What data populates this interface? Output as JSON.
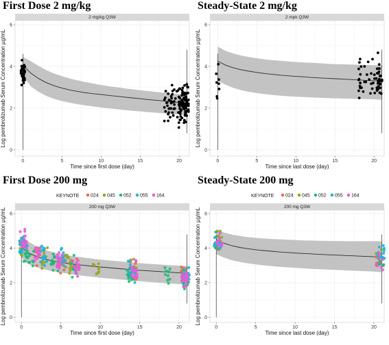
{
  "colors": {
    "keynote_024": "#f0675c",
    "keynote_045": "#9aa31c",
    "keynote_052": "#1fb97a",
    "keynote_055": "#1db5de",
    "keynote_164": "#e85bdc",
    "band": "#b8b8b8",
    "strip": "#d9d9d9",
    "line": "#2b2b2b",
    "points": "#000000"
  },
  "chart_data": [
    {
      "type": "scatter",
      "title": "First Dose 2 mg/kg",
      "facet_label": "2 mg/kg Q3W",
      "xlabel": "Time since first dose (day)",
      "ylabel": "Log pembrolizumab Serum Concentration µg/mL",
      "xlim": [
        -1,
        21.3
      ],
      "ylim": [
        -0.3,
        6.2
      ],
      "xticks": [
        0,
        5,
        10,
        15,
        20
      ],
      "yticks": [
        0,
        2,
        4,
        6
      ],
      "grid": true,
      "legend": null,
      "median_line": {
        "x": [
          0,
          1,
          2,
          3,
          4,
          5,
          6,
          7,
          8,
          9,
          10,
          11,
          12,
          13,
          14,
          15,
          16,
          17,
          18,
          19,
          20,
          21
        ],
        "y": [
          4.05,
          3.68,
          3.42,
          3.22,
          3.07,
          2.96,
          2.87,
          2.8,
          2.74,
          2.69,
          2.65,
          2.61,
          2.57,
          2.53,
          2.49,
          2.45,
          2.41,
          2.38,
          2.34,
          2.3,
          2.27,
          2.25
        ]
      },
      "band_upper": [
        4.45,
        4.25,
        4.02,
        3.82,
        3.66,
        3.53,
        3.42,
        3.33,
        3.25,
        3.18,
        3.11,
        3.05,
        3.0,
        2.95,
        2.9,
        2.86,
        2.82,
        2.78,
        2.74,
        2.7,
        2.67,
        2.65
      ],
      "band_lower": [
        3.55,
        3.05,
        2.78,
        2.58,
        2.44,
        2.34,
        2.26,
        2.19,
        2.13,
        2.08,
        2.03,
        1.99,
        1.95,
        1.91,
        1.87,
        1.84,
        1.81,
        1.78,
        1.75,
        1.72,
        1.7,
        1.68
      ],
      "series": [
        {
          "group": "trough",
          "x_range": [
            18,
            21
          ],
          "y_center": 2.2,
          "count": 120,
          "seed": 11
        }
      ]
    },
    {
      "type": "scatter",
      "title": "Steady-State 2 mg/kg",
      "facet_label": "2 mpk Q3W",
      "xlabel": "Time since last dose (day)",
      "ylabel": "Log pembrolizumab Serum Concentration µg/mL",
      "xlim": [
        -1,
        21.3
      ],
      "ylim": [
        -0.3,
        6.2
      ],
      "xticks": [
        0,
        5,
        10,
        15,
        20
      ],
      "yticks": [
        0,
        2,
        4,
        6
      ],
      "grid": true,
      "legend": null,
      "median_line": {
        "x": [
          0,
          1,
          2,
          3,
          4,
          5,
          6,
          7,
          8,
          9,
          10,
          11,
          12,
          13,
          14,
          15,
          16,
          17,
          18,
          19,
          20,
          21
        ],
        "y": [
          4.25,
          4.06,
          3.93,
          3.84,
          3.77,
          3.71,
          3.66,
          3.62,
          3.58,
          3.55,
          3.52,
          3.5,
          3.47,
          3.45,
          3.43,
          3.41,
          3.39,
          3.37,
          3.35,
          3.33,
          3.31,
          3.3
        ]
      },
      "band_upper": [
        4.95,
        4.75,
        4.62,
        4.52,
        4.45,
        4.39,
        4.34,
        4.3,
        4.27,
        4.24,
        4.21,
        4.19,
        4.17,
        4.15,
        4.13,
        4.11,
        4.1,
        4.09,
        4.08,
        4.07,
        4.06,
        4.05
      ],
      "band_lower": [
        3.3,
        3.12,
        2.97,
        2.86,
        2.78,
        2.72,
        2.67,
        2.63,
        2.6,
        2.57,
        2.55,
        2.53,
        2.51,
        2.5,
        2.48,
        2.47,
        2.46,
        2.45,
        2.44,
        2.43,
        2.42,
        2.4
      ],
      "series": [
        {
          "group": "trough",
          "x_range": [
            18,
            21
          ],
          "y_center": 3.4,
          "count": 60,
          "seed": 23
        }
      ]
    },
    {
      "type": "scatter",
      "title": "First Dose 200 mg",
      "facet_label": "200 mg Q3W",
      "xlabel": "Time since first dose (day)",
      "ylabel": "Log pembrolizumab Serum Concentration µg/mL",
      "xlim": [
        -0.8,
        21.3
      ],
      "ylim": [
        -0.3,
        6.2
      ],
      "xticks": [
        0,
        5,
        10,
        15,
        20
      ],
      "yticks": [
        0,
        2,
        4,
        6
      ],
      "grid": true,
      "legend": {
        "title": "KEYNOTE",
        "position": "top",
        "entries": [
          "024",
          "045",
          "052",
          "055",
          "164"
        ]
      },
      "median_line": {
        "x": [
          0,
          1,
          2,
          3,
          4,
          5,
          6,
          7,
          8,
          9,
          10,
          11,
          12,
          13,
          14,
          15,
          16,
          17,
          18,
          19,
          20,
          21
        ],
        "y": [
          4.05,
          3.7,
          3.5,
          3.36,
          3.26,
          3.18,
          3.11,
          3.05,
          3.0,
          2.95,
          2.91,
          2.87,
          2.83,
          2.79,
          2.76,
          2.72,
          2.69,
          2.66,
          2.63,
          2.6,
          2.57,
          2.55
        ]
      },
      "band_upper": [
        4.7,
        4.35,
        4.08,
        3.9,
        3.77,
        3.66,
        3.58,
        3.51,
        3.45,
        3.39,
        3.34,
        3.29,
        3.25,
        3.21,
        3.17,
        3.13,
        3.1,
        3.07,
        3.04,
        3.01,
        2.98,
        2.95
      ],
      "band_lower": [
        3.45,
        3.05,
        2.88,
        2.76,
        2.66,
        2.58,
        2.51,
        2.45,
        2.39,
        2.34,
        2.29,
        2.25,
        2.21,
        2.17,
        2.13,
        2.09,
        2.05,
        2.02,
        1.98,
        1.95,
        1.92,
        1.9
      ],
      "series": [
        {
          "group": "024",
          "clusters": [
            [
              0.2,
              4.2,
              14
            ],
            [
              2.2,
              3.5,
              10
            ],
            [
              5.2,
              3.2,
              10
            ],
            [
              7.2,
              3.0,
              8
            ],
            [
              14.1,
              2.8,
              10
            ],
            [
              20.6,
              2.5,
              14
            ]
          ],
          "seed": 31
        },
        {
          "group": "045",
          "clusters": [
            [
              0.2,
              4.0,
              14
            ],
            [
              3.0,
              3.4,
              12
            ],
            [
              6.0,
              3.1,
              12
            ],
            [
              9.5,
              2.9,
              8
            ],
            [
              14.2,
              2.6,
              12
            ],
            [
              20.7,
              2.4,
              16
            ]
          ],
          "seed": 37
        },
        {
          "group": "052",
          "clusters": [
            [
              0.3,
              3.8,
              16
            ],
            [
              1.2,
              3.5,
              12
            ],
            [
              4.2,
              3.2,
              16
            ],
            [
              6.7,
              2.9,
              14
            ],
            [
              13.8,
              2.5,
              16
            ],
            [
              18.5,
              2.4,
              10
            ],
            [
              20.8,
              2.2,
              20
            ]
          ],
          "seed": 41
        },
        {
          "group": "055",
          "clusters": [
            [
              0.2,
              4.3,
              18
            ],
            [
              2.8,
              3.6,
              14
            ],
            [
              5.1,
              3.3,
              14
            ],
            [
              14.0,
              2.7,
              14
            ],
            [
              20.9,
              2.5,
              22
            ]
          ],
          "seed": 43
        },
        {
          "group": "164",
          "clusters": [
            [
              0.3,
              4.4,
              18
            ],
            [
              2.0,
              3.7,
              14
            ],
            [
              4.8,
              3.3,
              16
            ],
            [
              6.9,
              3.0,
              14
            ],
            [
              14.3,
              2.6,
              18
            ],
            [
              20.7,
              2.3,
              20
            ]
          ],
          "seed": 47
        }
      ]
    },
    {
      "type": "scatter",
      "title": "Steady-State 200 mg",
      "facet_label": "200 mg Q3W",
      "xlabel": "Time since last dose (day)",
      "ylabel": "Log pembrolizumab Serum Concentration µg/mL",
      "xlim": [
        -0.8,
        21.3
      ],
      "ylim": [
        -0.3,
        6.2
      ],
      "xticks": [
        0,
        5,
        10,
        15,
        20
      ],
      "yticks": [
        0,
        2,
        4,
        6
      ],
      "grid": true,
      "legend": {
        "title": "KEYNOTE",
        "position": "top",
        "entries": [
          "024",
          "045",
          "052",
          "055",
          "164"
        ]
      },
      "median_line": {
        "x": [
          0,
          1,
          2,
          3,
          4,
          5,
          6,
          7,
          8,
          9,
          10,
          11,
          12,
          13,
          14,
          15,
          16,
          17,
          18,
          19,
          20,
          21
        ],
        "y": [
          4.5,
          4.28,
          4.14,
          4.04,
          3.97,
          3.91,
          3.86,
          3.82,
          3.78,
          3.75,
          3.72,
          3.69,
          3.67,
          3.64,
          3.62,
          3.6,
          3.58,
          3.56,
          3.54,
          3.52,
          3.5,
          3.48
        ]
      },
      "band_upper": [
        5.1,
        4.9,
        4.78,
        4.7,
        4.64,
        4.6,
        4.56,
        4.53,
        4.51,
        4.49,
        4.47,
        4.45,
        4.44,
        4.43,
        4.42,
        4.41,
        4.41,
        4.4,
        4.4,
        4.4,
        4.4,
        4.4
      ],
      "band_lower": [
        3.65,
        3.45,
        3.3,
        3.2,
        3.12,
        3.06,
        3.01,
        2.96,
        2.92,
        2.89,
        2.86,
        2.83,
        2.8,
        2.78,
        2.76,
        2.74,
        2.72,
        2.7,
        2.68,
        2.66,
        2.64,
        2.6
      ],
      "series": [
        {
          "group": "024",
          "clusters": [
            [
              0.2,
              4.4,
              6
            ],
            [
              20.7,
              3.4,
              6
            ]
          ],
          "seed": 53
        },
        {
          "group": "045",
          "clusters": [
            [
              0.3,
              4.6,
              8
            ],
            [
              20.6,
              3.5,
              8
            ]
          ],
          "seed": 59
        },
        {
          "group": "052",
          "clusters": [
            [
              0.2,
              4.2,
              10
            ],
            [
              20.8,
              3.2,
              10
            ]
          ],
          "seed": 61
        },
        {
          "group": "055",
          "clusters": [
            [
              0.2,
              4.5,
              14
            ],
            [
              20.9,
              3.6,
              16
            ]
          ],
          "seed": 67
        },
        {
          "group": "164",
          "clusters": [
            [
              0.3,
              4.4,
              8
            ],
            [
              20.7,
              3.3,
              8
            ]
          ],
          "seed": 71
        }
      ]
    }
  ]
}
